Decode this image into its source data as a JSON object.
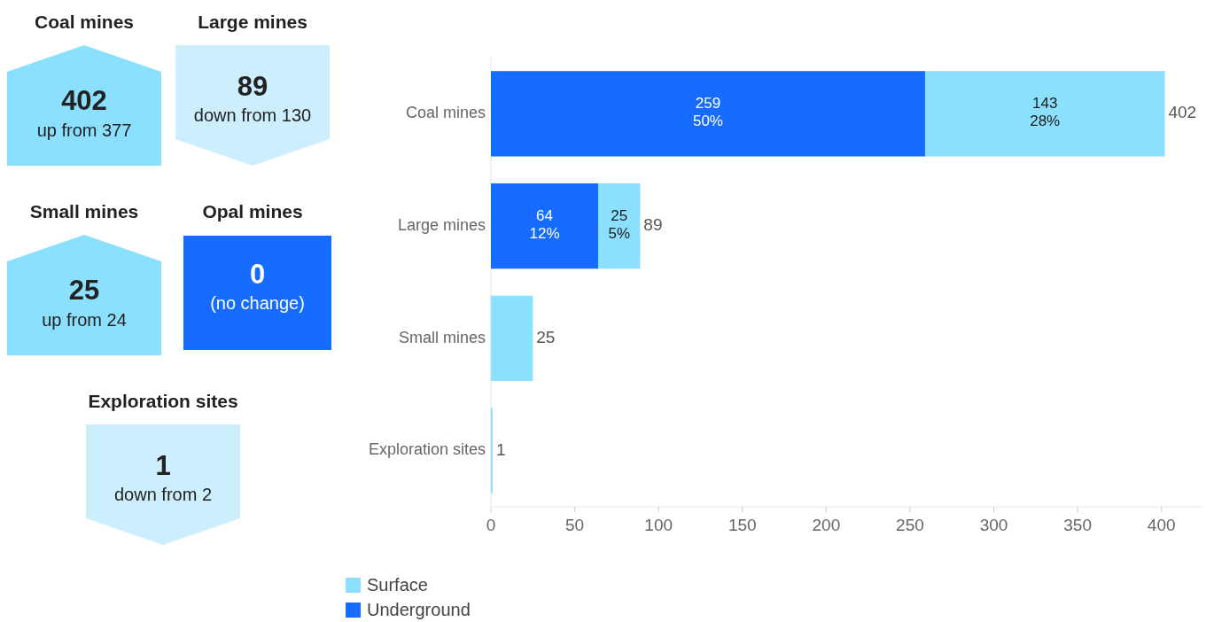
{
  "chart_data": [
    {
      "type": "other",
      "categories": [
        "Coal mines",
        "Large mines",
        "Small mines",
        "Opal mines",
        "Exploration sites"
      ],
      "values": [
        402,
        89,
        25,
        0,
        1
      ],
      "data_labels": true,
      "annotations": [
        "up from 377",
        "down from 130",
        "up from 24",
        "(no change)",
        "down from 2"
      ],
      "colors": [
        "#8ce0ff",
        "#cdeefc",
        "#8ce0ff",
        "#156cff",
        "#cdeefc"
      ]
    },
    {
      "type": "bar",
      "orientation": "horizontal",
      "stacked": true,
      "categories": [
        "Coal mines",
        "Large mines",
        "Small mines",
        "Exploration sites"
      ],
      "series": [
        {
          "name": "Underground",
          "color": "#156cff",
          "values": [
            259,
            64,
            0,
            0
          ],
          "value_labels": [
            "259\n50%",
            "64\n12%",
            null,
            null
          ]
        },
        {
          "name": "Surface",
          "color": "#8ce0ff",
          "values": [
            143,
            25,
            25,
            1
          ],
          "value_labels": [
            "143\n28%",
            "25\n5%",
            null,
            null
          ]
        }
      ],
      "totals": [
        "402",
        "89",
        "25",
        "1"
      ],
      "xlim": [
        0,
        425
      ],
      "xticks": [
        0,
        50,
        100,
        150,
        200,
        250,
        300,
        350,
        400
      ],
      "legend": "bottom left"
    }
  ]
}
